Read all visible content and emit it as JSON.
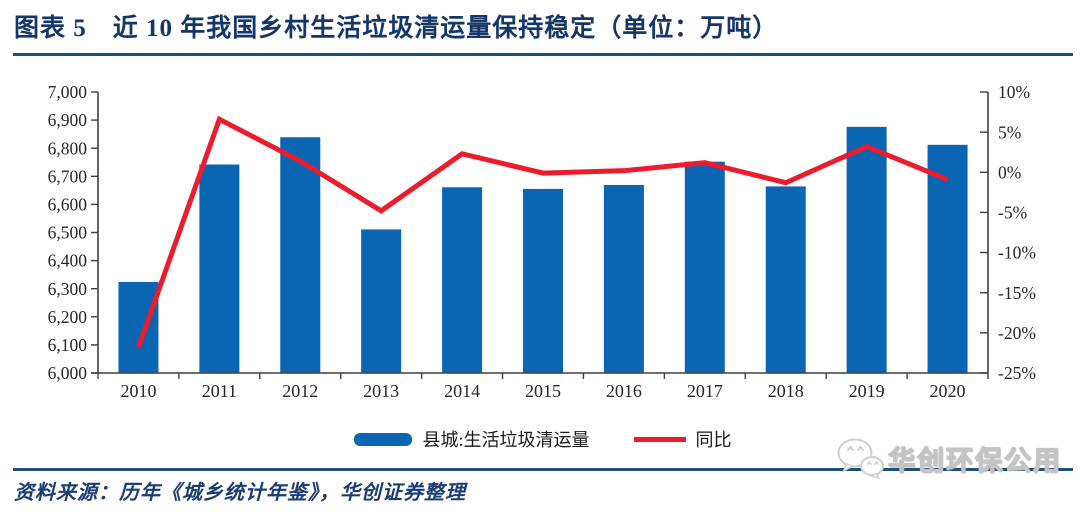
{
  "header": {
    "title": "图表 5　近 10 年我国乡村生活垃圾清运量保持稳定（单位：万吨）"
  },
  "colors": {
    "accent_rule": "#1f4e79",
    "title_text": "#14366b",
    "bar": "#0a65b2",
    "line": "#ec1c2e",
    "axis": "#3f3f3f",
    "axis_label": "#262626"
  },
  "chart_data": {
    "type": "bar+line combo",
    "categories": [
      "2010",
      "2011",
      "2012",
      "2013",
      "2014",
      "2015",
      "2016",
      "2017",
      "2018",
      "2019",
      "2020"
    ],
    "series": [
      {
        "name": "县城:生活垃圾清运量",
        "type": "bar",
        "axis": "left",
        "color": "#0a65b2",
        "values": [
          6324,
          6742,
          6839,
          6511,
          6661,
          6655,
          6669,
          6752,
          6664,
          6876,
          6812
        ]
      },
      {
        "name": "同比",
        "type": "line",
        "axis": "right",
        "color": "#ec1c2e",
        "unit": "%",
        "values": [
          -21.8,
          6.6,
          1.4,
          -4.8,
          2.3,
          -0.1,
          0.2,
          1.2,
          -1.3,
          3.2,
          -0.9
        ]
      }
    ],
    "left_axis": {
      "min": 6000,
      "max": 7000,
      "tick_step": 100,
      "tick_labels": [
        "7,000",
        "6,900",
        "6,800",
        "6,700",
        "6,600",
        "6,500",
        "6,400",
        "6,300",
        "6,200",
        "6,100",
        "6,000"
      ]
    },
    "right_axis": {
      "min": -25,
      "max": 10,
      "tick_step": 5,
      "tick_labels": [
        "10%",
        "5%",
        "0%",
        "-5%",
        "-10%",
        "-15%",
        "-20%",
        "-25%"
      ]
    },
    "grid": false,
    "legend_position": "bottom",
    "unit_note": "万吨"
  },
  "footer": {
    "source": "资料来源：历年《城乡统计年鉴》，华创证券整理"
  },
  "watermark": {
    "text": "华创环保公用"
  }
}
